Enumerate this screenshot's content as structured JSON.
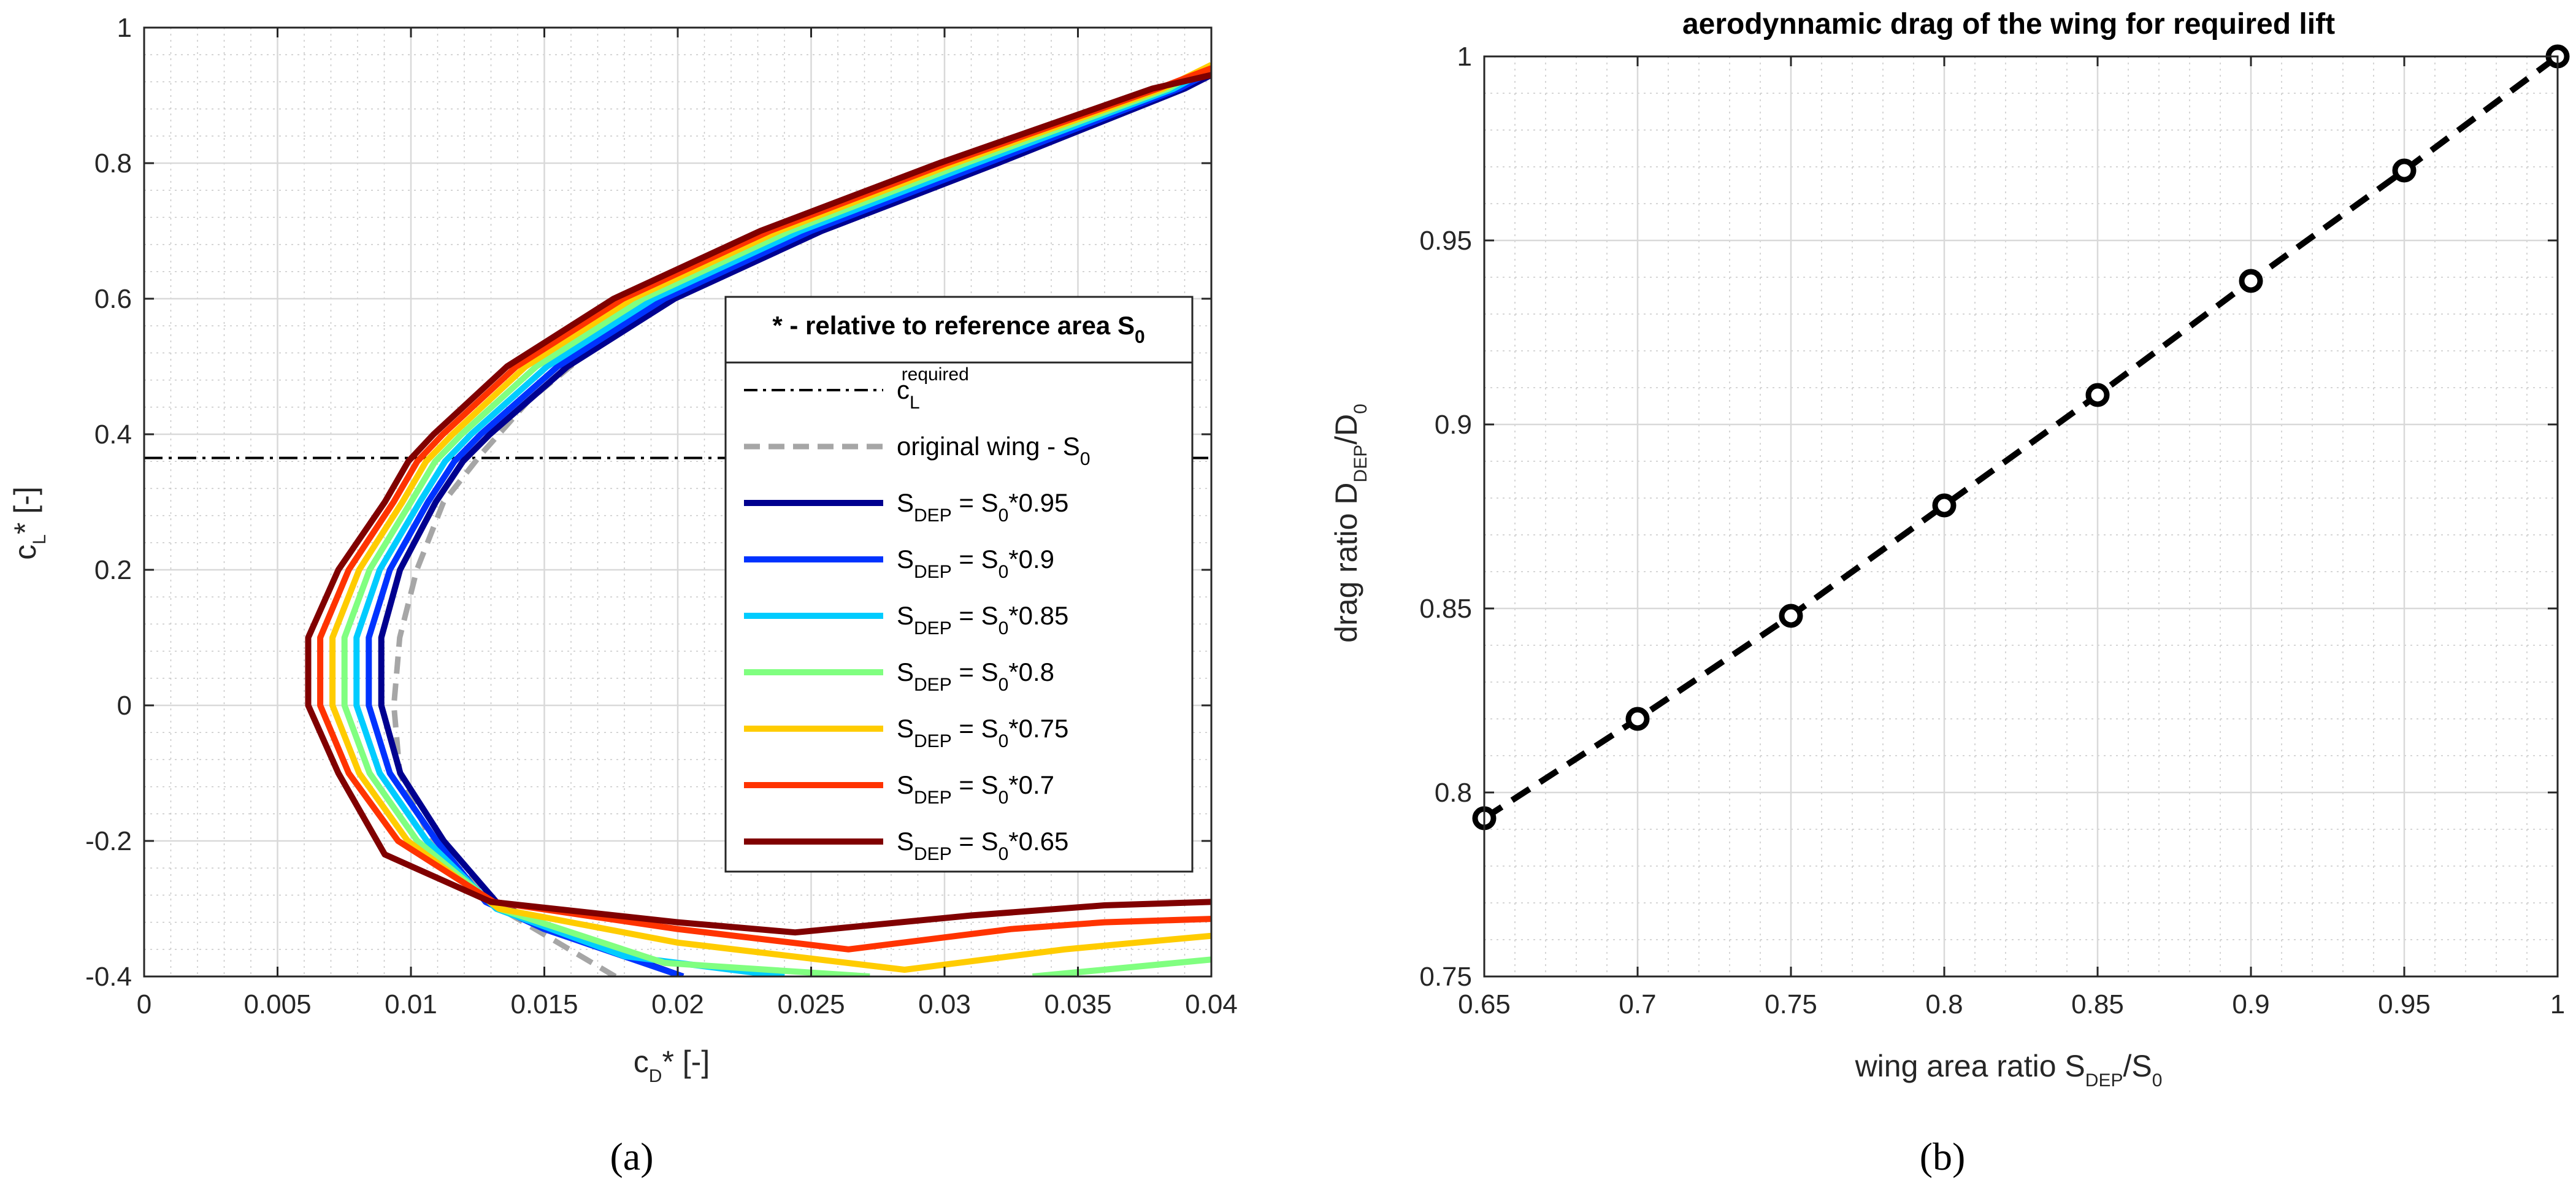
{
  "chart_data": [
    {
      "id": "a",
      "type": "line",
      "panel_label": "(a)",
      "xlabel": {
        "main": "c",
        "sub": "D",
        "tail": "* [-]"
      },
      "ylabel": {
        "main": "c",
        "sub": "L",
        "tail": "* [-]"
      },
      "xlim": [
        0,
        0.04
      ],
      "ylim": [
        -0.4,
        1
      ],
      "xticks": [
        0,
        0.005,
        0.01,
        0.015,
        0.02,
        0.025,
        0.03,
        0.035,
        0.04
      ],
      "xtick_labels": [
        "0",
        "0.005",
        "0.01",
        "0.015",
        "0.02",
        "0.025",
        "0.03",
        "0.035",
        "0.04"
      ],
      "yticks": [
        -0.4,
        -0.2,
        0,
        0.2,
        0.4,
        0.6,
        0.8,
        1
      ],
      "ytick_labels": [
        "-0.4",
        "-0.2",
        "0",
        "0.2",
        "0.4",
        "0.6",
        "0.8",
        "1"
      ],
      "grid": true,
      "minor_grid": true,
      "required_cl": 0.365,
      "legend": {
        "header": {
          "main": "* - relative to reference area S",
          "sub": "0"
        },
        "entries": [
          {
            "key": "required",
            "main": "c",
            "sub": "L",
            "sup": "required",
            "tail": ""
          },
          {
            "key": "original",
            "main": "original wing - S",
            "sub": "0",
            "sup": "",
            "tail": ""
          },
          {
            "key": "s095",
            "main": "S",
            "sub": "DEP",
            "mid": " = S",
            "sub2": "0",
            "tail": "*0.95"
          },
          {
            "key": "s090",
            "main": "S",
            "sub": "DEP",
            "mid": " = S",
            "sub2": "0",
            "tail": "*0.9"
          },
          {
            "key": "s085",
            "main": "S",
            "sub": "DEP",
            "mid": " = S",
            "sub2": "0",
            "tail": "*0.85"
          },
          {
            "key": "s080",
            "main": "S",
            "sub": "DEP",
            "mid": " = S",
            "sub2": "0",
            "tail": "*0.8"
          },
          {
            "key": "s075",
            "main": "S",
            "sub": "DEP",
            "mid": " = S",
            "sub2": "0",
            "tail": "*0.75"
          },
          {
            "key": "s070",
            "main": "S",
            "sub": "DEP",
            "mid": " = S",
            "sub2": "0",
            "tail": "*0.7"
          },
          {
            "key": "s065",
            "main": "S",
            "sub": "DEP",
            "mid": " = S",
            "sub2": "0",
            "tail": "*0.65"
          }
        ]
      },
      "series": [
        {
          "name": "original wing - S0",
          "key": "original",
          "color": "#a6a6a6",
          "dashed": true,
          "x": [
            0.01766,
            0.01336,
            0.01076,
            0.00958,
            0.00936,
            0.00958,
            0.01022,
            0.01122,
            0.01262,
            0.01442,
            0.0166,
            0.0192,
            0.0222,
            0.0256,
            0.0295,
            0.0339,
            0.0386,
            0.04
          ],
          "y": [
            -0.4,
            -0.3,
            -0.2,
            -0.1,
            0.0,
            0.1,
            0.2,
            0.3,
            0.37,
            0.45,
            0.52,
            0.59,
            0.65,
            0.71,
            0.77,
            0.84,
            0.91,
            0.93
          ]
        },
        {
          "name": "SDEP = S0*0.95",
          "key": "s095",
          "color": "#00008f",
          "x": [
            0.0202,
            0.0152,
            0.0132,
            0.01123,
            0.0096,
            0.00889,
            0.00889,
            0.00959,
            0.01093,
            0.01195,
            0.01296,
            0.01587,
            0.01988,
            0.0254,
            0.032,
            0.039,
            0.04
          ],
          "y": [
            -0.4,
            -0.33,
            -0.29,
            -0.2,
            -0.1,
            0.0,
            0.1,
            0.2,
            0.3,
            0.36,
            0.4,
            0.5,
            0.6,
            0.7,
            0.8,
            0.91,
            0.93
          ]
        },
        {
          "name": "SDEP = S0*0.9",
          "key": "s090",
          "color": "#0033ff",
          "x": [
            0.0202,
            0.015,
            0.0128,
            0.01096,
            0.00921,
            0.00842,
            0.00842,
            0.00921,
            0.01064,
            0.01163,
            0.01262,
            0.0155,
            0.0195,
            0.025,
            0.0316,
            0.0388,
            0.04
          ],
          "y": [
            -0.4,
            -0.33,
            -0.29,
            -0.2,
            -0.1,
            0.0,
            0.1,
            0.2,
            0.3,
            0.36,
            0.4,
            0.5,
            0.6,
            0.7,
            0.8,
            0.91,
            0.935
          ]
        },
        {
          "name": "SDEP = S0*0.85",
          "key": "s085",
          "color": "#00ccff",
          "x": [
            0.024,
            0.018,
            0.0132,
            0.0106,
            0.00883,
            0.00796,
            0.00796,
            0.00883,
            0.01033,
            0.01128,
            0.01226,
            0.0151,
            0.0191,
            0.0246,
            0.0312,
            0.0386,
            0.04
          ],
          "y": [
            -0.4,
            -0.37,
            -0.3,
            -0.2,
            -0.1,
            0.0,
            0.1,
            0.2,
            0.3,
            0.36,
            0.4,
            0.5,
            0.6,
            0.7,
            0.8,
            0.91,
            0.94
          ]
        },
        {
          "name": "SDEP = S0*0.8",
          "key": "s080",
          "color": "#80ff80",
          "x": [
            0.0272,
            0.0195,
            0.0133,
            0.01024,
            0.00845,
            0.00751,
            0.00751,
            0.00845,
            0.01,
            0.01091,
            0.0119,
            0.0147,
            0.0187,
            0.0242,
            0.0308,
            0.0384,
            0.04
          ],
          "y": [
            -0.4,
            -0.38,
            -0.3,
            -0.2,
            -0.1,
            0.0,
            0.1,
            0.2,
            0.3,
            0.36,
            0.4,
            0.5,
            0.6,
            0.7,
            0.8,
            0.91,
            0.945
          ]
        },
        {
          "name": "SDEP = S0*0.8 (tail)",
          "key": "s080",
          "color": "#80ff80",
          "x": [
            0.0333,
            0.04
          ],
          "y": [
            -0.4,
            -0.375
          ]
        },
        {
          "name": "SDEP = S0*0.75",
          "key": "s075",
          "color": "#ffcc00",
          "x": [
            0.04,
            0.0372,
            0.0345,
            0.0285,
            0.02,
            0.0133,
            0.00988,
            0.00806,
            0.00706,
            0.00706,
            0.00806,
            0.00968,
            0.01057,
            0.01156,
            0.0143,
            0.0183,
            0.0238,
            0.0304,
            0.0382,
            0.04
          ],
          "y": [
            -0.34,
            -0.35,
            -0.36,
            -0.39,
            -0.35,
            -0.3,
            -0.2,
            -0.1,
            0.0,
            0.1,
            0.2,
            0.3,
            0.36,
            0.4,
            0.5,
            0.6,
            0.7,
            0.8,
            0.91,
            0.945
          ]
        },
        {
          "name": "SDEP = S0*0.7",
          "key": "s070",
          "color": "#ff3300",
          "x": [
            0.04,
            0.036,
            0.0325,
            0.0264,
            0.02,
            0.0131,
            0.00952,
            0.00767,
            0.0066,
            0.0066,
            0.00767,
            0.00935,
            0.01024,
            0.0112,
            0.01395,
            0.01795,
            0.02345,
            0.0301,
            0.038,
            0.04
          ],
          "y": [
            -0.315,
            -0.32,
            -0.33,
            -0.36,
            -0.33,
            -0.29,
            -0.2,
            -0.1,
            0.0,
            0.1,
            0.2,
            0.3,
            0.36,
            0.4,
            0.5,
            0.6,
            0.7,
            0.8,
            0.91,
            0.94
          ]
        },
        {
          "name": "SDEP = S0*0.65",
          "key": "s065",
          "color": "#800000",
          "x": [
            0.04,
            0.036,
            0.031,
            0.0244,
            0.02,
            0.013,
            0.00902,
            0.00728,
            0.00615,
            0.00615,
            0.00728,
            0.00902,
            0.0099,
            0.01085,
            0.0136,
            0.0176,
            0.0231,
            0.0298,
            0.0378,
            0.04
          ],
          "y": [
            -0.29,
            -0.295,
            -0.31,
            -0.335,
            -0.32,
            -0.29,
            -0.22,
            -0.1,
            0.0,
            0.1,
            0.2,
            0.3,
            0.36,
            0.4,
            0.5,
            0.6,
            0.7,
            0.8,
            0.91,
            0.93
          ]
        }
      ]
    },
    {
      "id": "b",
      "type": "line",
      "panel_label": "(b)",
      "title": "aerodynnamic drag of the wing for required lift",
      "xlabel": {
        "main": "wing area ratio S",
        "sub": "DEP",
        "tail": "/S",
        "sub2": "0"
      },
      "ylabel": {
        "main": "drag ratio D",
        "sub": "DEP",
        "tail": "/D",
        "sub2": "0"
      },
      "xlim": [
        0.65,
        1
      ],
      "ylim": [
        0.75,
        1
      ],
      "xticks": [
        0.65,
        0.7,
        0.75,
        0.8,
        0.85,
        0.9,
        0.95,
        1
      ],
      "xtick_labels": [
        "0.65",
        "0.7",
        "0.75",
        "0.8",
        "0.85",
        "0.9",
        "0.95",
        "1"
      ],
      "yticks": [
        0.75,
        0.8,
        0.85,
        0.9,
        0.95,
        1
      ],
      "ytick_labels": [
        "0.75",
        "0.8",
        "0.85",
        "0.9",
        "0.95",
        "1"
      ],
      "grid": true,
      "minor_grid": true,
      "series": [
        {
          "name": "drag ratio",
          "color": "#000000",
          "dashed": true,
          "markers": "circle",
          "x": [
            0.65,
            0.7,
            0.75,
            0.8,
            0.85,
            0.9,
            0.95,
            1.0
          ],
          "y": [
            0.793,
            0.82,
            0.848,
            0.878,
            0.908,
            0.939,
            0.969,
            1.0
          ]
        }
      ]
    }
  ]
}
